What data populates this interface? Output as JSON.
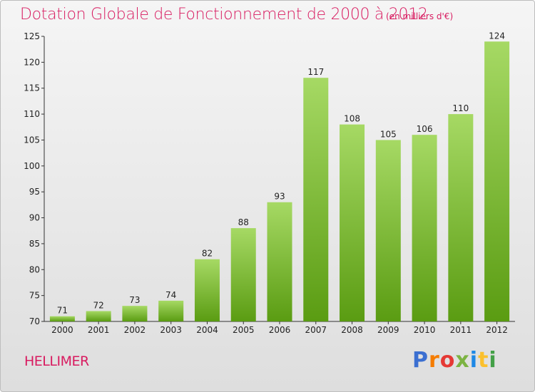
{
  "title": "Dotation Globale de Fonctionnement de 2000 à 2012",
  "subtitle": "(en milliers d'€)",
  "commune": "HELLIMER",
  "logo": {
    "letters": [
      "P",
      "r",
      "o",
      "x",
      "i",
      "t",
      "i"
    ],
    "colors": [
      "#3b6fd1",
      "#f57c00",
      "#e53935",
      "#7cb342",
      "#1e88e5",
      "#fbc02d",
      "#43a047"
    ]
  },
  "colors": {
    "accent": "#d81b60",
    "bar_light": "#a6d964",
    "bar_dark": "#5a9c12"
  },
  "chart_data": {
    "type": "bar",
    "title": "Dotation Globale de Fonctionnement de 2000 à 2012",
    "subtitle": "(en milliers d'€)",
    "xlabel": "",
    "ylabel": "",
    "categories": [
      "2000",
      "2001",
      "2002",
      "2003",
      "2004",
      "2005",
      "2006",
      "2007",
      "2008",
      "2009",
      "2010",
      "2011",
      "2012"
    ],
    "values": [
      71,
      72,
      73,
      74,
      82,
      88,
      93,
      117,
      108,
      105,
      106,
      110,
      124
    ],
    "ylim": [
      70,
      125
    ],
    "yticks": [
      70,
      75,
      80,
      85,
      90,
      95,
      100,
      105,
      110,
      115,
      120,
      125
    ],
    "grid": false,
    "legend": "none"
  }
}
